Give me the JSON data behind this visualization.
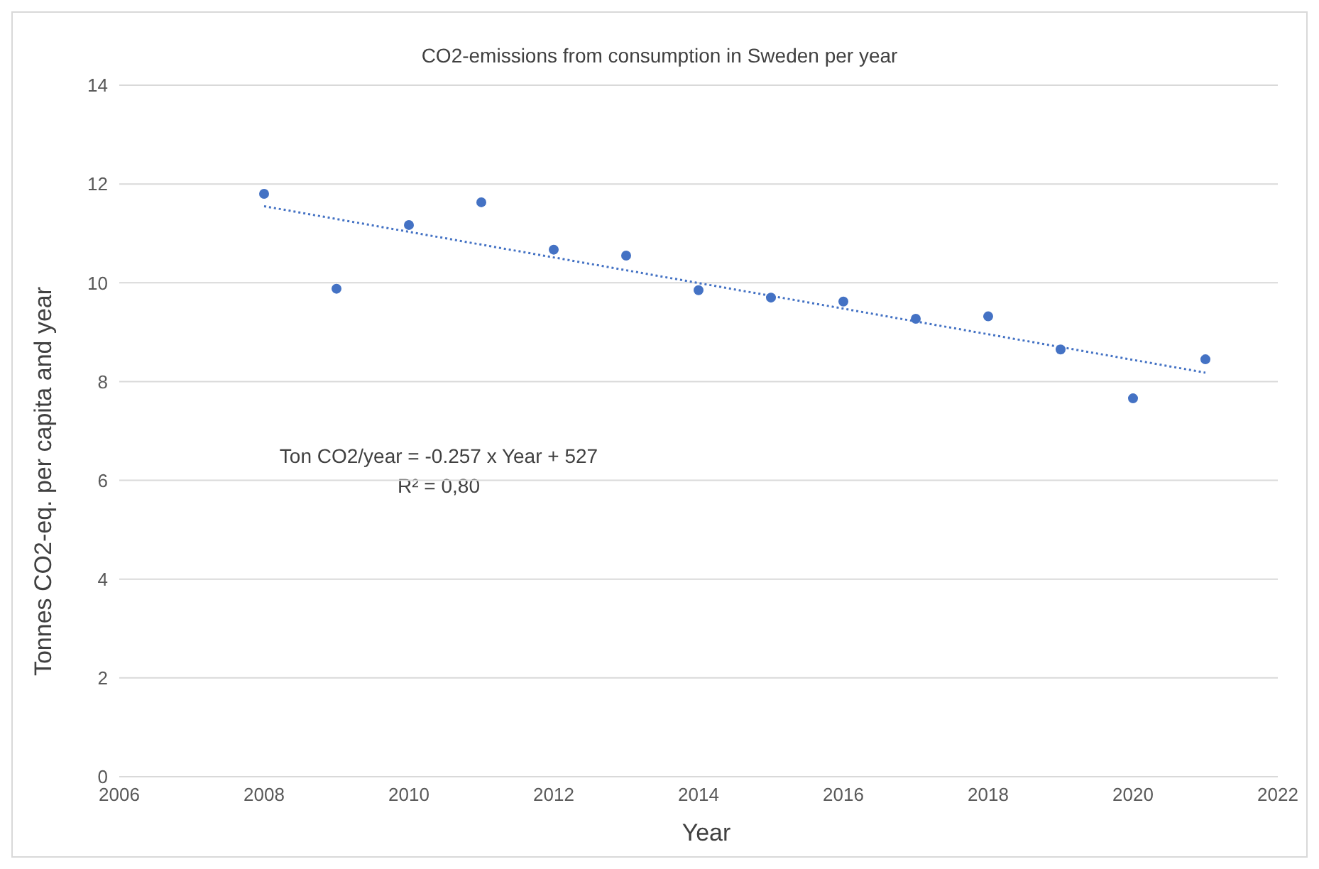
{
  "chart_data": {
    "type": "scatter",
    "title": "CO2-emissions from consumption in Sweden per year",
    "xlabel": "Year",
    "ylabel": "Tonnes CO2-eq. per capita and year",
    "x": [
      2008,
      2009,
      2010,
      2011,
      2012,
      2013,
      2014,
      2015,
      2016,
      2017,
      2018,
      2019,
      2020,
      2021
    ],
    "series": [
      {
        "color": "#4472c4",
        "marker": "circle",
        "values": [
          11.8,
          9.88,
          11.17,
          11.63,
          10.67,
          10.55,
          9.85,
          9.7,
          9.62,
          9.27,
          9.32,
          8.65,
          7.66,
          8.45
        ]
      },
      {
        "type": "line",
        "color": "#4472c4",
        "marker": "none",
        "line_style": "dotted",
        "x": [
          2008,
          2021
        ],
        "values": [
          11.55,
          8.18
        ]
      }
    ],
    "xlim": [
      2006,
      2022
    ],
    "xticks": [
      2006,
      2008,
      2010,
      2012,
      2014,
      2016,
      2018,
      2020,
      2022
    ],
    "ylim": [
      0,
      14
    ],
    "yticks": [
      0,
      2,
      4,
      6,
      8,
      10,
      12,
      14
    ],
    "grid": "y",
    "legend": false,
    "annotations": [
      "Ton CO2/year = -0.257 x Year + 527",
      "R² = 0,80"
    ]
  }
}
